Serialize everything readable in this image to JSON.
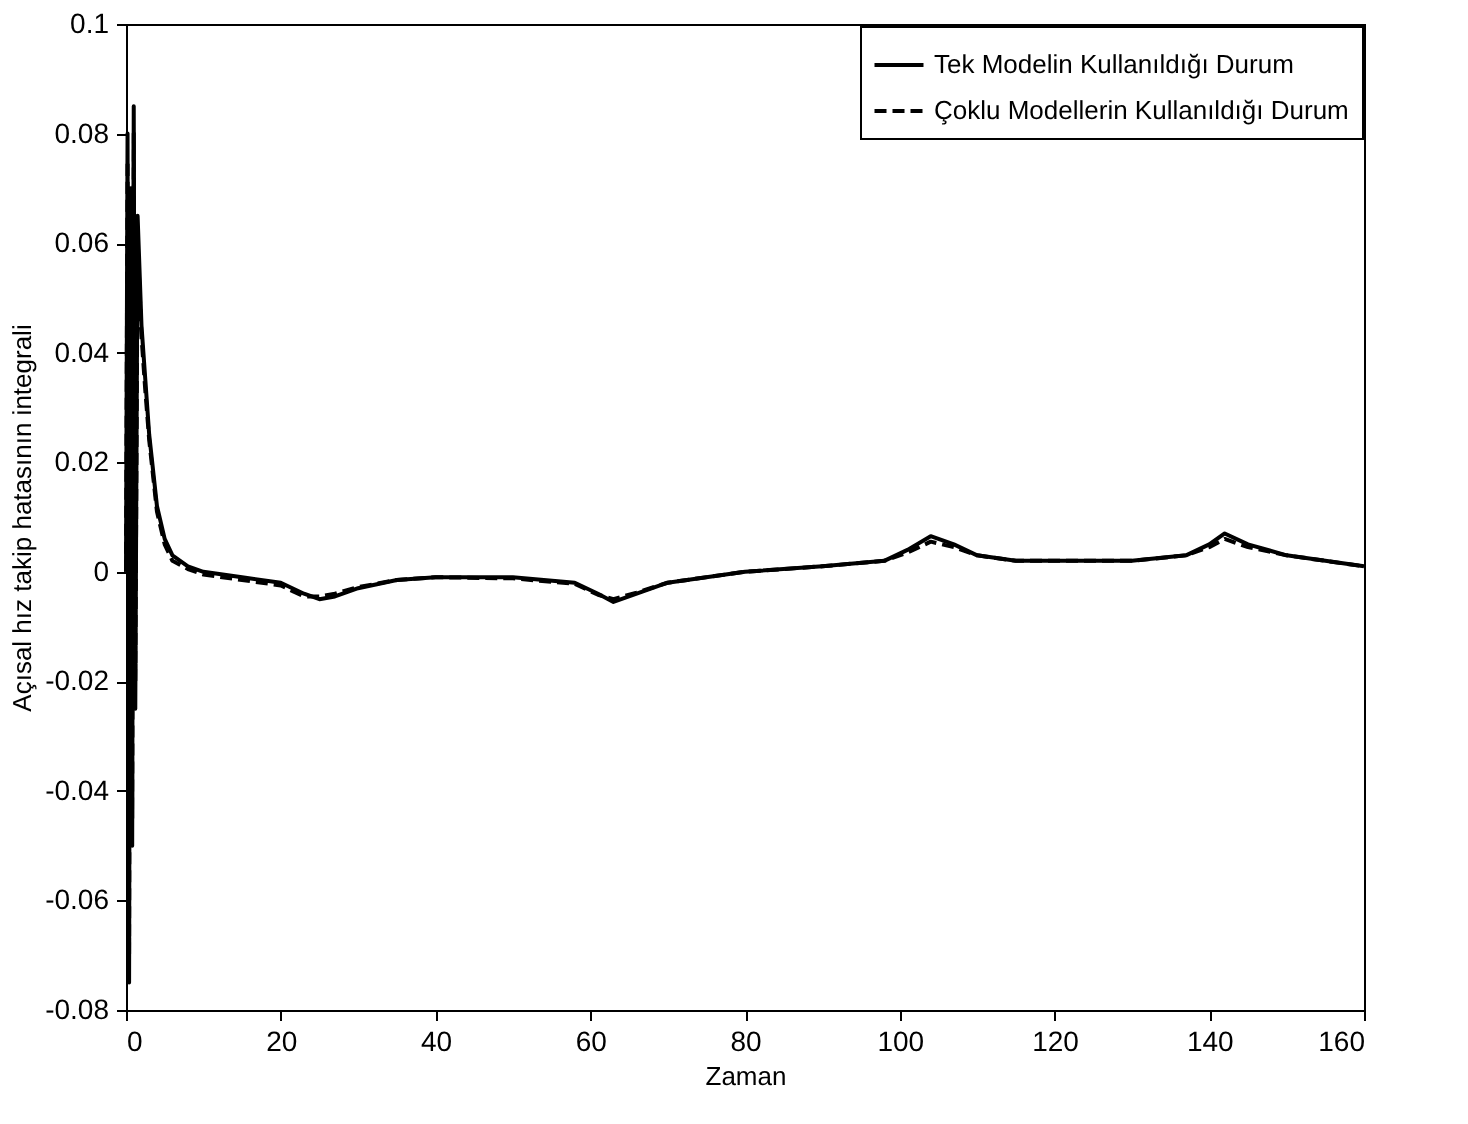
{
  "chart_data": {
    "type": "line",
    "xlabel": "Zaman",
    "ylabel": "Açısal hız takip hatasının integrali",
    "xlim": [
      0,
      160
    ],
    "ylim": [
      -0.08,
      0.1
    ],
    "xticks": [
      0,
      20,
      40,
      60,
      80,
      100,
      120,
      140,
      160
    ],
    "yticks": [
      -0.08,
      -0.06,
      -0.04,
      -0.02,
      0,
      0.02,
      0.04,
      0.06,
      0.08,
      0.1
    ],
    "grid": false,
    "legend": "top right",
    "marker": "none",
    "series": [
      {
        "name": "Tek Modelin Kullanıldığı Durum",
        "color": "#000000",
        "line_style": "solid",
        "x": [
          0,
          0.2,
          0.4,
          0.6,
          0.8,
          1.0,
          1.2,
          1.5,
          2,
          2.5,
          3,
          4,
          5,
          6,
          8,
          10,
          15,
          20,
          23,
          25,
          27,
          30,
          35,
          40,
          50,
          58,
          61,
          63,
          66,
          70,
          80,
          90,
          98,
          101,
          104,
          107,
          110,
          115,
          130,
          137,
          140,
          142,
          145,
          150,
          160
        ],
        "values": [
          0,
          0.08,
          -0.075,
          0.07,
          -0.05,
          0.085,
          -0.025,
          0.065,
          0.045,
          0.035,
          0.025,
          0.012,
          0.006,
          0.003,
          0.001,
          0,
          -0.001,
          -0.002,
          -0.004,
          -0.005,
          -0.0045,
          -0.003,
          -0.0015,
          -0.001,
          -0.001,
          -0.002,
          -0.004,
          -0.0055,
          -0.004,
          -0.002,
          0,
          0.001,
          0.002,
          0.004,
          0.0065,
          0.005,
          0.003,
          0.002,
          0.002,
          0.003,
          0.005,
          0.007,
          0.005,
          0.003,
          0.001
        ]
      },
      {
        "name": "Çoklu Modellerin Kullanıldığı Durum",
        "color": "#000000",
        "line_style": "dashed",
        "x": [
          0,
          0.2,
          0.4,
          0.6,
          0.8,
          1.0,
          1.2,
          1.5,
          2,
          2.5,
          3,
          4,
          5,
          6,
          8,
          10,
          15,
          20,
          23,
          25,
          27,
          30,
          35,
          40,
          50,
          58,
          61,
          63,
          66,
          70,
          80,
          90,
          98,
          101,
          104,
          107,
          110,
          115,
          130,
          137,
          140,
          142,
          145,
          150,
          160
        ],
        "values": [
          0,
          0.075,
          -0.07,
          0.065,
          -0.045,
          0.08,
          -0.02,
          0.06,
          0.043,
          0.033,
          0.024,
          0.011,
          0.005,
          0.002,
          0.0005,
          -0.0005,
          -0.0015,
          -0.0025,
          -0.0045,
          -0.0045,
          -0.004,
          -0.0028,
          -0.0015,
          -0.001,
          -0.0012,
          -0.0022,
          -0.0042,
          -0.005,
          -0.0038,
          -0.002,
          0,
          0.001,
          0.002,
          0.0035,
          0.0055,
          0.0045,
          0.003,
          0.002,
          0.002,
          0.003,
          0.0045,
          0.006,
          0.0045,
          0.003,
          0.001
        ]
      }
    ]
  }
}
